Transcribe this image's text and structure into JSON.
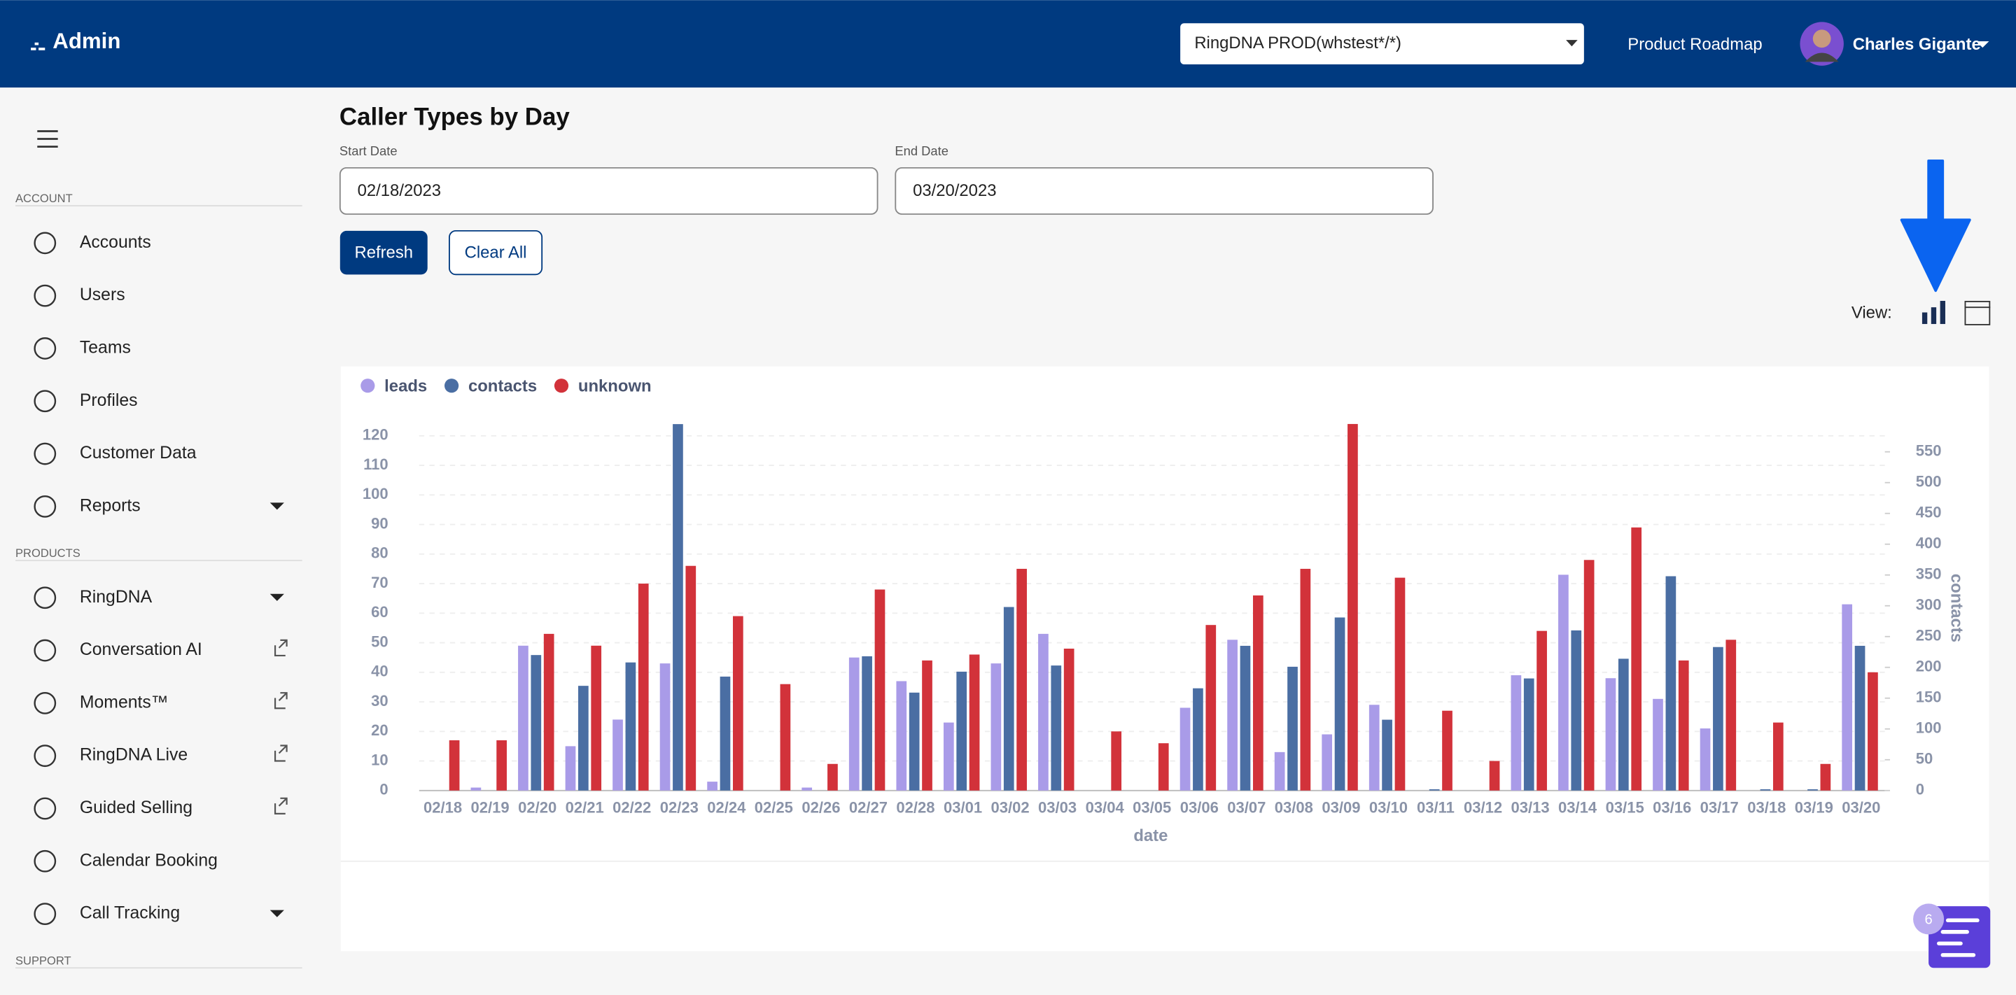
{
  "header": {
    "brand": "Admin",
    "org_select": "RingDNA PROD(whstest*/*)",
    "link": "Product Roadmap",
    "user": "Charles Gigante"
  },
  "sidebar": {
    "sections": [
      {
        "title": "ACCOUNT",
        "items": [
          "Accounts",
          "Users",
          "Teams",
          "Profiles",
          "Customer Data",
          "Reports"
        ]
      },
      {
        "title": "PRODUCTS",
        "items": [
          "RingDNA",
          "Conversation AI",
          "Moments™",
          "RingDNA Live",
          "Guided Selling",
          "Calendar Booking",
          "Call Tracking"
        ]
      },
      {
        "title": "SUPPORT",
        "items": []
      }
    ]
  },
  "page": {
    "title": "Caller Types by Day",
    "start_label": "Start Date",
    "start_value": "02/18/2023",
    "end_label": "End Date",
    "end_value": "03/20/2023",
    "refresh": "Refresh",
    "clear": "Clear All",
    "view_label": "View:"
  },
  "chat_badge": 6,
  "chart_data": {
    "type": "bar",
    "x_label": "date",
    "y2_label": "contacts",
    "categories": [
      "02/18",
      "02/19",
      "02/20",
      "02/21",
      "02/22",
      "02/23",
      "02/24",
      "02/25",
      "02/26",
      "02/27",
      "02/28",
      "03/01",
      "03/02",
      "03/03",
      "03/04",
      "03/05",
      "03/06",
      "03/07",
      "03/08",
      "03/09",
      "03/10",
      "03/11",
      "03/12",
      "03/13",
      "03/14",
      "03/15",
      "03/16",
      "03/17",
      "03/18",
      "03/19",
      "03/20"
    ],
    "series": [
      {
        "name": "leads",
        "color": "#a99be8",
        "values": [
          0,
          1,
          49,
          15,
          24,
          43,
          3,
          0,
          1,
          45,
          37,
          23,
          43,
          53,
          0,
          0,
          28,
          51,
          13,
          19,
          29,
          0,
          0,
          39,
          73,
          38,
          31,
          21,
          0,
          0,
          63
        ]
      },
      {
        "name": "contacts",
        "color": "#4a6ea3",
        "axis": "y2",
        "values": [
          0,
          0,
          220,
          170,
          208,
          595,
          185,
          0,
          0,
          218,
          159,
          193,
          298,
          203,
          0,
          0,
          166,
          235,
          201,
          281,
          115,
          2,
          0,
          182,
          260,
          214,
          348,
          233,
          2,
          2,
          235
        ]
      },
      {
        "name": "unknown",
        "color": "#d2323a",
        "values": [
          17,
          17,
          53,
          49,
          70,
          76,
          59,
          36,
          9,
          68,
          44,
          46,
          75,
          48,
          20,
          16,
          56,
          66,
          75,
          124,
          72,
          27,
          10,
          54,
          78,
          89,
          44,
          51,
          23,
          9,
          40
        ]
      }
    ],
    "ylim": [
      0,
      125
    ],
    "yticks": [
      0,
      10,
      20,
      30,
      40,
      50,
      60,
      70,
      80,
      90,
      100,
      110,
      120
    ],
    "y2lim": [
      0,
      600
    ],
    "y2ticks": [
      0,
      50,
      100,
      150,
      200,
      250,
      300,
      350,
      400,
      450,
      500,
      550
    ],
    "grid": true,
    "legend": "top-left"
  }
}
